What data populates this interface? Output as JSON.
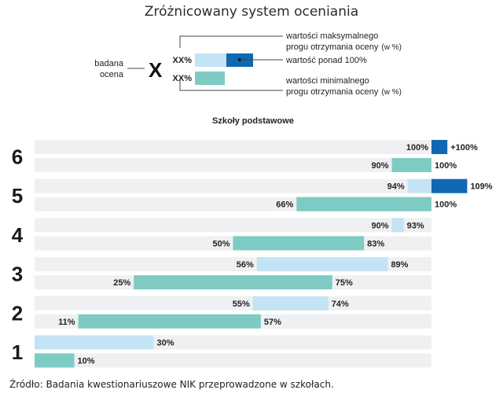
{
  "title": "Zróżnicowany system oceniania",
  "legend": {
    "label_line1": "badana",
    "label_line2": "ocena",
    "symbol": "X",
    "xx_top": "XX%",
    "xx_bottom": "XX%",
    "max_line1": "wartości maksymalnego",
    "max_line2": "progu otrzymania oceny",
    "max_unit": "(w %)",
    "over": "wartość ponad 100%",
    "min_line1": "wartości minimalnego",
    "min_line2": "progu otrzymania oceny",
    "min_unit": "(w %)"
  },
  "source": "Źródło: Badania kwestionariuszowe NIK przeprowadzone w szkołach.",
  "colors": {
    "max_bar": "#c3e4f4",
    "over_bar": "#1068b2",
    "min_bar": "#7ecbc4",
    "track": "#eef0f2"
  },
  "chart_data": {
    "type": "bar",
    "title": "Szkoły podstawowe",
    "unit": "%",
    "xlim": [
      0,
      100
    ],
    "grades": [
      "6",
      "5",
      "4",
      "3",
      "2",
      "1"
    ],
    "series": [
      {
        "name": "wartości maksymalnego progu otrzymania oceny",
        "start": [
          100,
          94,
          90,
          56,
          55,
          0
        ],
        "end": [
          100,
          100,
          93,
          89,
          74,
          30
        ],
        "start_labels": [
          "100%",
          "94%",
          "90%",
          "56%",
          "55%",
          ""
        ],
        "end_labels": [
          "",
          "",
          "93%",
          "89%",
          "74%",
          "30%"
        ],
        "over_end": [
          104,
          109,
          null,
          null,
          null,
          null
        ],
        "over_labels": [
          "+100%",
          "109%",
          "",
          "",
          "",
          ""
        ]
      },
      {
        "name": "wartości minimalnego progu otrzymania oceny",
        "start": [
          90,
          66,
          50,
          25,
          11,
          0
        ],
        "end": [
          100,
          100,
          83,
          75,
          57,
          10
        ],
        "start_labels": [
          "90%",
          "66%",
          "50%",
          "25%",
          "11%",
          ""
        ],
        "end_labels": [
          "100%",
          "100%",
          "83%",
          "75%",
          "57%",
          "10%"
        ]
      }
    ]
  }
}
